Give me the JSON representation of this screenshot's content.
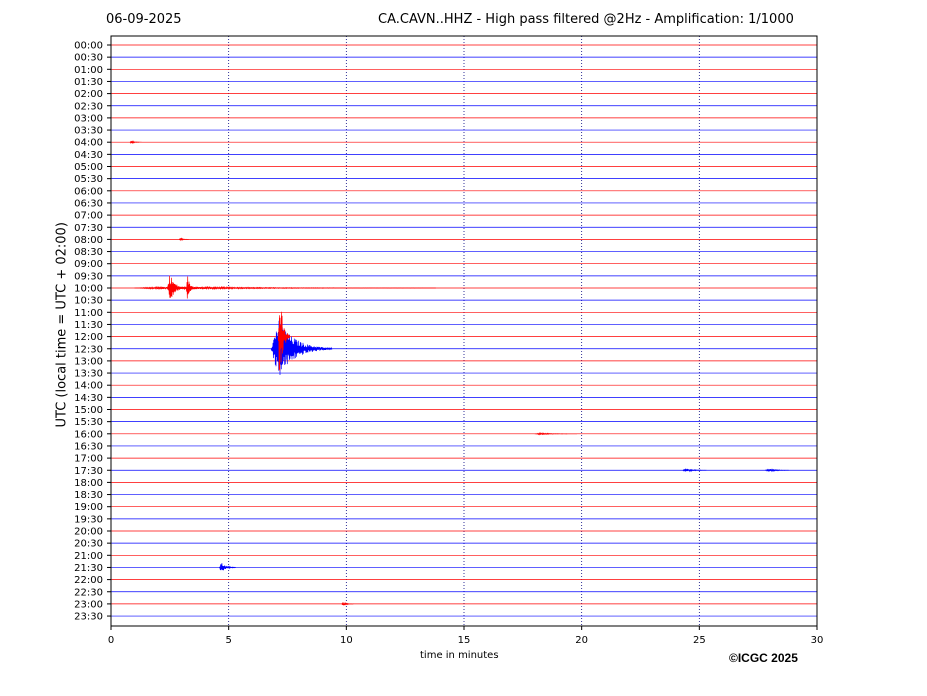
{
  "header": {
    "date": "06-09-2025",
    "title": "CA.CAVN..HHZ - High pass filtered @2Hz - Amplification: 1/1000"
  },
  "footer": {
    "copyright": "©ICGC 2025"
  },
  "colors": {
    "red_trace": "#ff0000",
    "blue_trace": "#0000ff",
    "grid": "#00007f",
    "axis": "#000000"
  },
  "chart_data": {
    "type": "line",
    "subtype": "helicorder",
    "xlabel": "time in minutes",
    "ylabel": "UTC (local time = UTC + 02:00)",
    "xlim": [
      0,
      30
    ],
    "x_ticks": [
      0,
      5,
      10,
      15,
      20,
      25,
      30
    ],
    "grid": "vertical dotted at 5, 10, 15, 20, 25",
    "trace_colors": "alternating red (even rows) and blue (odd rows)",
    "rows": [
      "00:00",
      "00:30",
      "01:00",
      "01:30",
      "02:00",
      "02:30",
      "03:00",
      "03:30",
      "04:00",
      "04:30",
      "05:00",
      "05:30",
      "06:00",
      "06:30",
      "07:00",
      "07:30",
      "08:00",
      "08:30",
      "09:00",
      "09:30",
      "10:00",
      "10:30",
      "11:00",
      "11:30",
      "12:00",
      "12:30",
      "13:00",
      "13:30",
      "14:00",
      "14:30",
      "15:00",
      "15:30",
      "16:00",
      "16:30",
      "17:00",
      "17:30",
      "18:00",
      "18:30",
      "19:00",
      "19:30",
      "20:00",
      "20:30",
      "21:00",
      "21:30",
      "22:00",
      "22:30",
      "23:00",
      "23:30"
    ],
    "events": [
      {
        "row": "04:00",
        "start_min": 0.8,
        "duration_min": 0.5,
        "amplitude_rows": 0.1
      },
      {
        "row": "08:00",
        "start_min": 2.9,
        "duration_min": 0.4,
        "amplitude_rows": 0.12
      },
      {
        "row": "10:00",
        "start_min": 1.0,
        "duration_min": 12.8,
        "amplitude_rows": 0.12
      },
      {
        "row": "10:00",
        "start_min": 2.4,
        "duration_min": 0.8,
        "amplitude_rows": 1.3
      },
      {
        "row": "10:00",
        "start_min": 3.2,
        "duration_min": 0.4,
        "amplitude_rows": 1.1
      },
      {
        "row": "12:30",
        "start_min": 6.8,
        "duration_min": 2.6,
        "amplitude_rows": 2.5
      },
      {
        "row": "12:00",
        "start_min": 7.1,
        "duration_min": 0.5,
        "amplitude_rows": 4.5
      },
      {
        "row": "16:00",
        "start_min": 18.0,
        "duration_min": 1.8,
        "amplitude_rows": 0.06
      },
      {
        "row": "17:30",
        "start_min": 24.3,
        "duration_min": 1.0,
        "amplitude_rows": 0.15
      },
      {
        "row": "17:30",
        "start_min": 27.8,
        "duration_min": 1.0,
        "amplitude_rows": 0.15
      },
      {
        "row": "21:30",
        "start_min": 4.6,
        "duration_min": 0.7,
        "amplitude_rows": 0.45
      },
      {
        "row": "23:00",
        "start_min": 9.8,
        "duration_min": 0.5,
        "amplitude_rows": 0.15
      }
    ]
  }
}
